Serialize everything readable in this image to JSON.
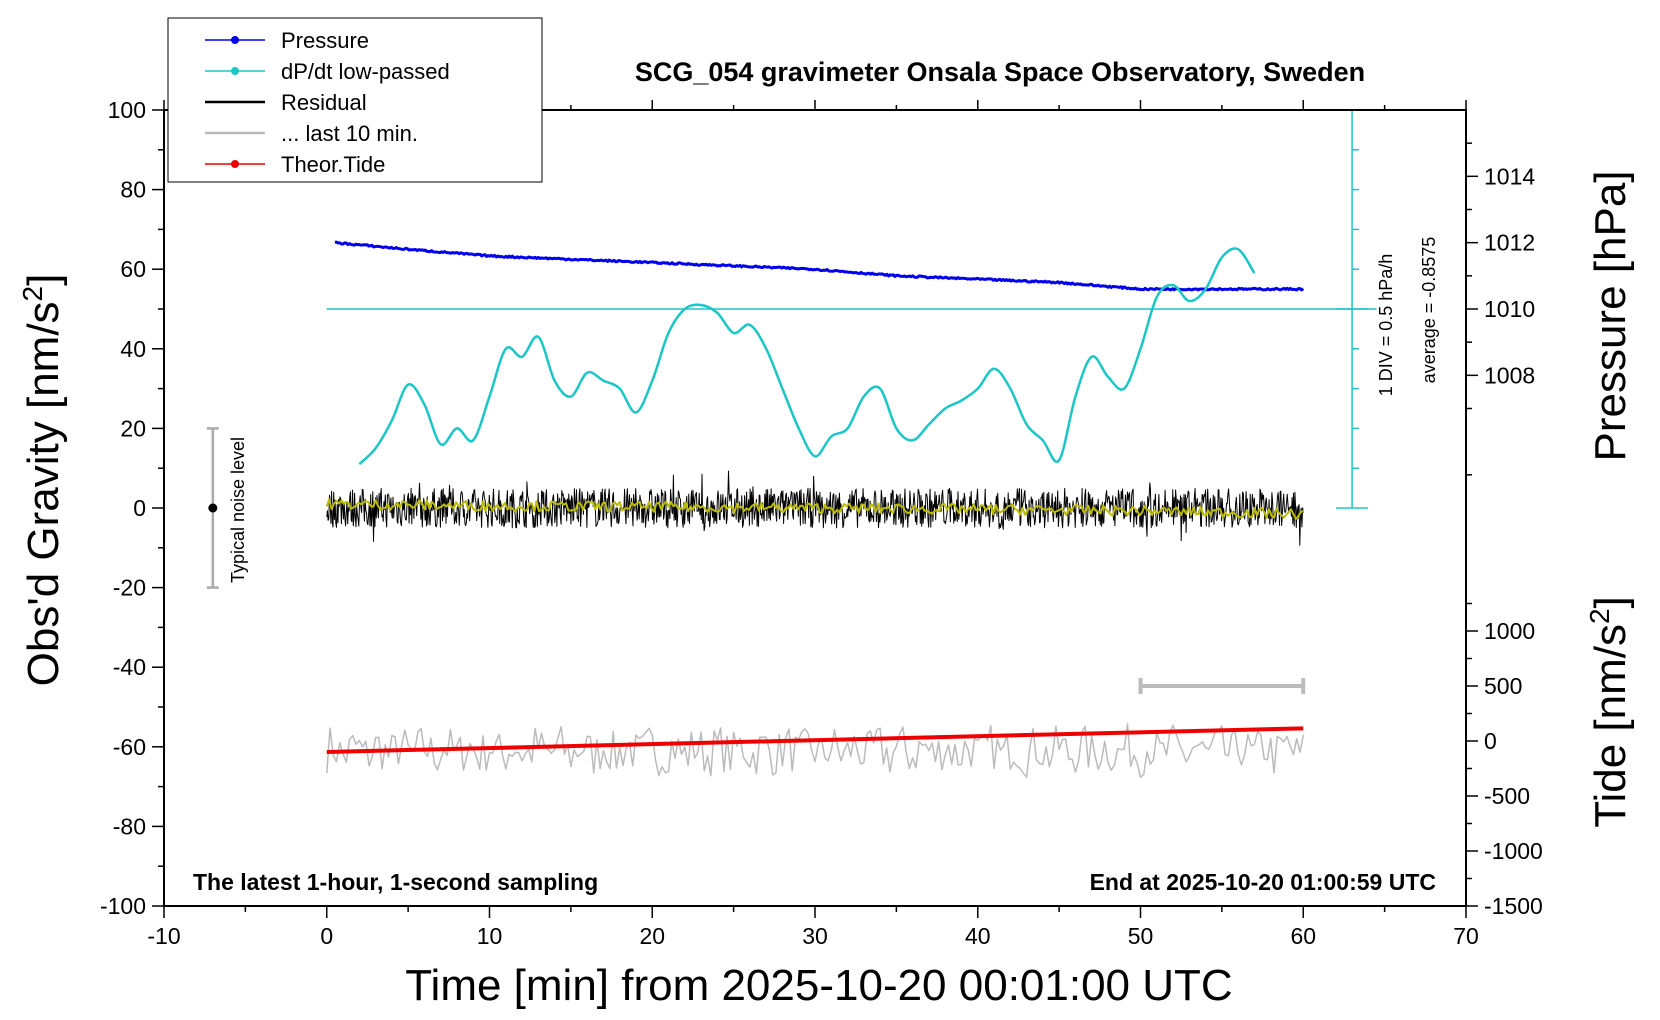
{
  "chart_data": {
    "type": "line",
    "title": "SCG_054 gravimeter Onsala Space Observatory, Sweden",
    "xlabel": "Time [min] from 2025-10-20 00:01:00 UTC",
    "ylabel_left": "Obs'd Gravity [nm/s",
    "ylabel_right_top": "Pressure [hPa]",
    "ylabel_right_bottom": "Tide [nm/s",
    "unit_superscript": "2",
    "xlim": [
      -10,
      70
    ],
    "ylim_left": [
      -100,
      100
    ],
    "pressure_lim": [
      1004,
      1016
    ],
    "tide_lim": [
      -1500,
      1500
    ],
    "x_ticks": [
      "-10",
      "0",
      "10",
      "20",
      "30",
      "40",
      "50",
      "60",
      "70"
    ],
    "y_left_ticks": [
      "100",
      "80",
      "60",
      "40",
      "20",
      "0",
      "-20",
      "-40",
      "-60",
      "-80",
      "-100"
    ],
    "pressure_ticks": [
      "1014",
      "1012",
      "1010",
      "1008"
    ],
    "tide_ticks": [
      "1000",
      "500",
      "0",
      "-500",
      "-1000",
      "-1500"
    ],
    "bottom_left_note": "The latest 1-hour, 1-second sampling",
    "bottom_right_note": "End at 2025-10-20 01:00:59 UTC",
    "noise_label": "Typical noise level",
    "dpdt_scale_label": "1 DIV = 0.5 hPa/h",
    "dpdt_average_label": "average = -0.8575",
    "legend": [
      {
        "label": "Pressure",
        "color": "#0000ee",
        "marker": true
      },
      {
        "label": "dP/dt low-passed",
        "color": "#1cc6c6",
        "marker": true
      },
      {
        "label": "Residual",
        "color": "#000000",
        "marker": false
      },
      {
        "label": "... last 10 min.",
        "color": "#bbbbbb",
        "marker": false
      },
      {
        "label": "Theor.Tide",
        "color": "#ee0000",
        "marker": true
      }
    ],
    "noise_bar": {
      "x": -7,
      "center": 0,
      "low": -20,
      "high": 20
    },
    "last10_bar": {
      "x_start": 50,
      "x_end": 60,
      "tide_value": 500
    },
    "pressure_series": {
      "unit": "hPa",
      "x": [
        0.5,
        5,
        10,
        15,
        20,
        25,
        30,
        35,
        40,
        45,
        50,
        55,
        60
      ],
      "values": [
        1012.0,
        1011.8,
        1011.6,
        1011.5,
        1011.4,
        1011.3,
        1011.2,
        1011.0,
        1010.9,
        1010.8,
        1010.6,
        1010.6,
        1010.6
      ]
    },
    "dpdt_series": {
      "unit": "gravity-axis units",
      "x": [
        2,
        3,
        4,
        5,
        6,
        7,
        8,
        9,
        10,
        11,
        12,
        13,
        14,
        15,
        16,
        17,
        18,
        19,
        20,
        21,
        22,
        23,
        24,
        25,
        26,
        27,
        28,
        29,
        30,
        31,
        32,
        33,
        34,
        35,
        36,
        37,
        38,
        39,
        40,
        41,
        42,
        43,
        44,
        45,
        46,
        47,
        48,
        49,
        50,
        51,
        52,
        53,
        54,
        55,
        56,
        57
      ],
      "values": [
        11,
        15,
        22,
        31,
        26,
        16,
        20,
        17,
        28,
        40,
        38,
        43,
        32,
        28,
        34,
        32,
        30,
        24,
        32,
        44,
        50,
        51,
        49,
        44,
        46,
        40,
        30,
        20,
        13,
        18,
        20,
        28,
        30,
        20,
        17,
        21,
        25,
        27,
        30,
        35,
        30,
        21,
        17,
        12,
        28,
        38,
        33,
        30,
        40,
        53,
        56,
        52,
        55,
        63,
        65,
        59
      ]
    },
    "residual_series": {
      "x_start": 0,
      "x_end": 60,
      "mean": 0,
      "amplitude": 5
    },
    "lowpass_residual_series": {
      "color": "#bbbb00",
      "x": [
        0,
        10,
        20,
        30,
        40,
        50,
        60
      ],
      "values": [
        1.0,
        0.5,
        0.3,
        0.0,
        -0.3,
        -0.7,
        -1.5
      ]
    },
    "tide_series": {
      "unit": "nm/s2",
      "x": [
        0,
        60
      ],
      "values": [
        -100,
        115
      ]
    },
    "last10_series": {
      "x_start": 0,
      "x_end": 60,
      "mean": -61,
      "amplitude": 4
    }
  }
}
